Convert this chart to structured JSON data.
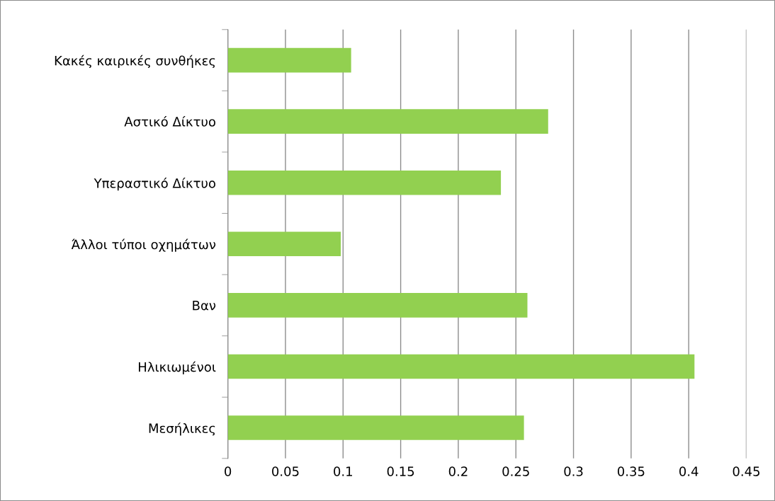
{
  "chart_data": {
    "type": "bar",
    "orientation": "horizontal",
    "categories": [
      "Κακές καιρικές συνθήκες",
      "Αστικό Δίκτυο",
      "Υπεραστικό Δίκτυο",
      "Άλλοι τύποι οχημάτων",
      "Βαν",
      "Ηλικιωμένοι",
      "Μεσήλικες"
    ],
    "values": [
      0.107,
      0.278,
      0.237,
      0.098,
      0.26,
      0.405,
      0.257
    ],
    "color": "#92d050",
    "xlim": [
      0,
      0.45
    ],
    "xticks": [
      0,
      0.05,
      0.1,
      0.15,
      0.2,
      0.25,
      0.3,
      0.35,
      0.4,
      0.45
    ],
    "grid": "x",
    "legend": false
  }
}
